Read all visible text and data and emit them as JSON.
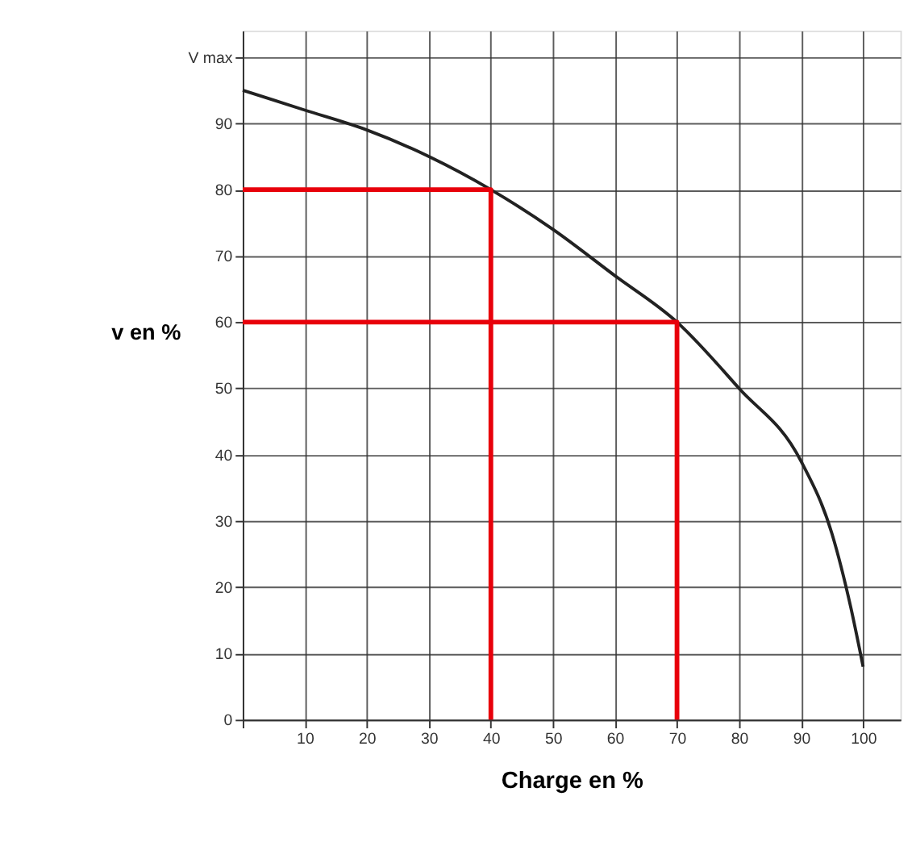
{
  "chart_data": {
    "type": "line",
    "xlabel": "Charge en %",
    "ylabel": "v en %",
    "xlim": [
      0,
      106
    ],
    "ylim": [
      0,
      104
    ],
    "xticks": [
      {
        "value": 0,
        "label": null
      },
      10,
      20,
      30,
      40,
      50,
      60,
      70,
      80,
      90,
      100
    ],
    "yticks": [
      0,
      10,
      20,
      30,
      40,
      50,
      60,
      70,
      80,
      90,
      {
        "value": 100,
        "label": "V max"
      }
    ],
    "grid": true,
    "marker": "none",
    "line_style": "solid",
    "x": [
      0,
      10,
      20,
      30,
      40,
      50,
      60,
      70,
      80,
      90,
      95,
      98,
      100
    ],
    "series": [
      {
        "color": "#222222",
        "values": [
          95,
          92,
          89,
          85,
          80,
          74,
          67,
          60,
          50,
          39,
          28,
          17,
          8
        ]
      },
      {
        "color": "#e8000b",
        "x": [
          0,
          40,
          40
        ],
        "values": [
          80,
          80,
          0
        ]
      },
      {
        "color": "#e8000b",
        "x": [
          0,
          70,
          70
        ],
        "values": [
          60,
          60,
          0
        ]
      }
    ]
  }
}
